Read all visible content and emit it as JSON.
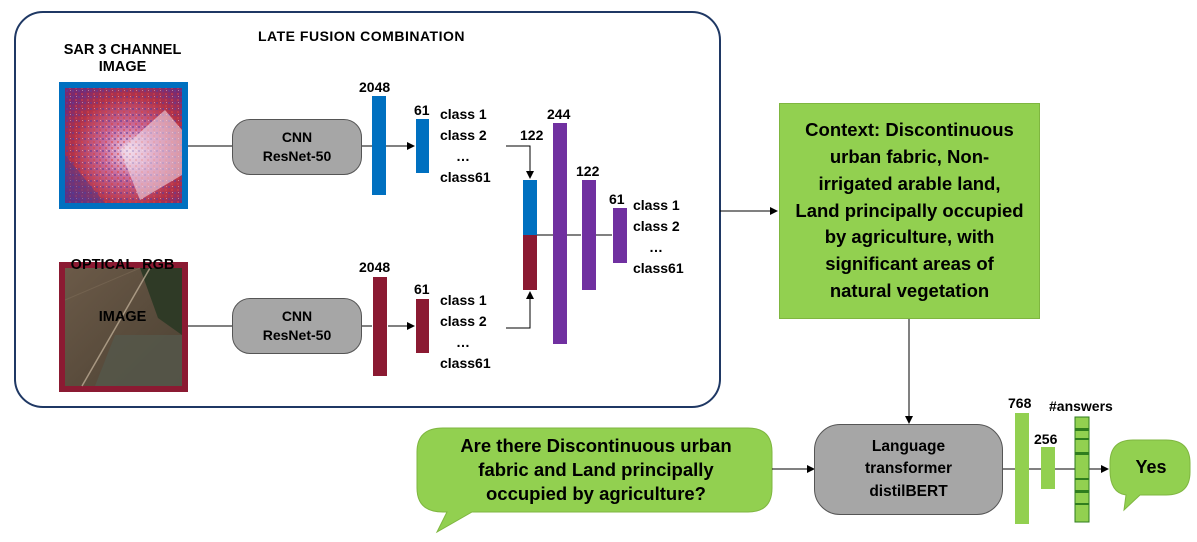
{
  "fusion": {
    "title": "LATE FUSION COMBINATION",
    "sar_label": [
      "SAR 3 CHANNEL",
      "IMAGE"
    ],
    "optical_label": [
      "OPTICAL  RGB",
      "IMAGE"
    ],
    "cnn_sar": [
      "CNN",
      "ResNet-50"
    ],
    "cnn_opt": [
      "CNN",
      "ResNet-50"
    ],
    "sar_features": "2048",
    "sar_classes": "61",
    "opt_features": "2048",
    "opt_classes": "61",
    "class_list_sar": [
      "class 1",
      "class 2",
      "…",
      "class61"
    ],
    "class_list_opt": [
      "class 1",
      "class 2",
      "…",
      "class61"
    ],
    "fused_in": "122",
    "dense1": "244",
    "dense2": "122",
    "dense3": "61",
    "class_list_out": [
      "class 1",
      "class 2",
      "…",
      "class61"
    ]
  },
  "context": [
    "Context: Discontinuous",
    "urban fabric, Non-",
    "irrigated arable land,",
    "Land principally occupied",
    "by agriculture, with",
    "significant areas of",
    "natural vegetation"
  ],
  "question": [
    "Are there Discontinuous urban",
    "fabric and Land principally",
    "occupied by agriculture?"
  ],
  "transformer": [
    "Language",
    "transformer",
    "distilBERT"
  ],
  "head": {
    "dim1": "768",
    "dim2": "256",
    "answers_label": "#answers"
  },
  "answer": "Yes",
  "colors": {
    "sar_blue": "#0070c0",
    "opt_red": "#8b1a32",
    "fusion_purple": "#7030a0",
    "green": "#92d050",
    "dark_green": "#2f7d1e",
    "frame": "#1f3864",
    "node_gray": "#a6a6a6"
  }
}
